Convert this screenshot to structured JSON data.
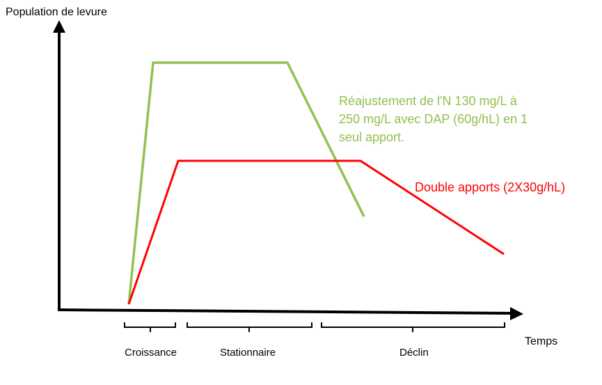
{
  "axes": {
    "y_label": "Population de levure",
    "x_label": "Temps"
  },
  "phases": [
    {
      "label": "Croissance"
    },
    {
      "label": "Stationnaire"
    },
    {
      "label": "Déclin"
    }
  ],
  "curves": {
    "single": {
      "color": "#92c050",
      "label_lines": [
        "Réajustement de l'N 130 mg/L à",
        "250 mg/L avec DAP (60g/hL) en 1",
        "seul apport."
      ]
    },
    "double": {
      "color": "#ff0000",
      "label": "Double apports (2X30g/hL)"
    }
  }
}
